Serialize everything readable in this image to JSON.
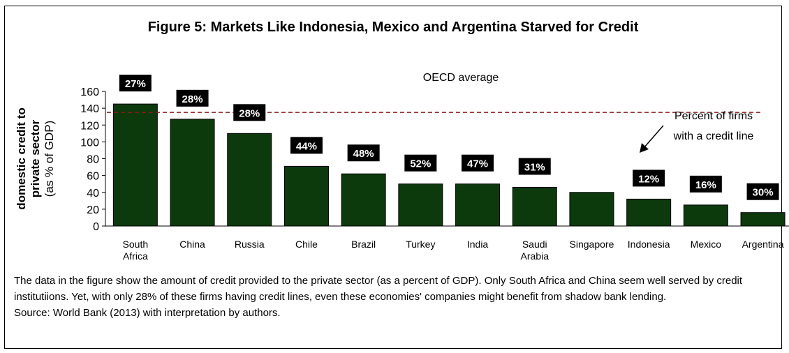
{
  "chart_data": {
    "type": "bar",
    "title": "Figure 5: Markets Like Indonesia, Mexico and Argentina Starved for Credit",
    "ylabel_bold_lines": [
      "domestic credit to",
      "private sector"
    ],
    "ylabel_sub": "(as % of GDP)",
    "ylim": [
      0,
      160
    ],
    "yticks": [
      0,
      20,
      40,
      60,
      80,
      100,
      120,
      140,
      160
    ],
    "categories": [
      [
        "South",
        "Africa"
      ],
      [
        "China"
      ],
      [
        "Russia"
      ],
      [
        "Chile"
      ],
      [
        "Brazil"
      ],
      [
        "Turkey"
      ],
      [
        "India"
      ],
      [
        "Saudi",
        "Arabia"
      ],
      [
        "Singapore"
      ],
      [
        "Indonesia"
      ],
      [
        "Mexico"
      ],
      [
        "Argentina"
      ]
    ],
    "values": [
      145,
      127,
      110,
      71,
      62,
      50,
      50,
      46,
      40,
      32,
      25,
      16
    ],
    "firm_credit_line_pct": [
      "27%",
      "28%",
      "28%",
      "44%",
      "48%",
      "52%",
      "47%",
      "31%",
      "",
      "12%",
      "16%",
      "30%"
    ],
    "reference_line": {
      "label": "OECD average",
      "value": 135,
      "color": "#8b1a1a"
    },
    "annotation": [
      "Percent of firms",
      "with a credit line"
    ],
    "bar_color": "#0d3a0d",
    "grid": false,
    "legend": "none"
  },
  "caption": {
    "text": "The data in the figure show the amount of credit provided to the private sector (as a percent of GDP). Only South Africa and China seem well served by credit institutiions. Yet, with only 28% of these firms having credit lines, even these economies' companies might benefit from shadow bank lending.",
    "source": "Source: World Bank (2013) with interpretation by authors."
  }
}
